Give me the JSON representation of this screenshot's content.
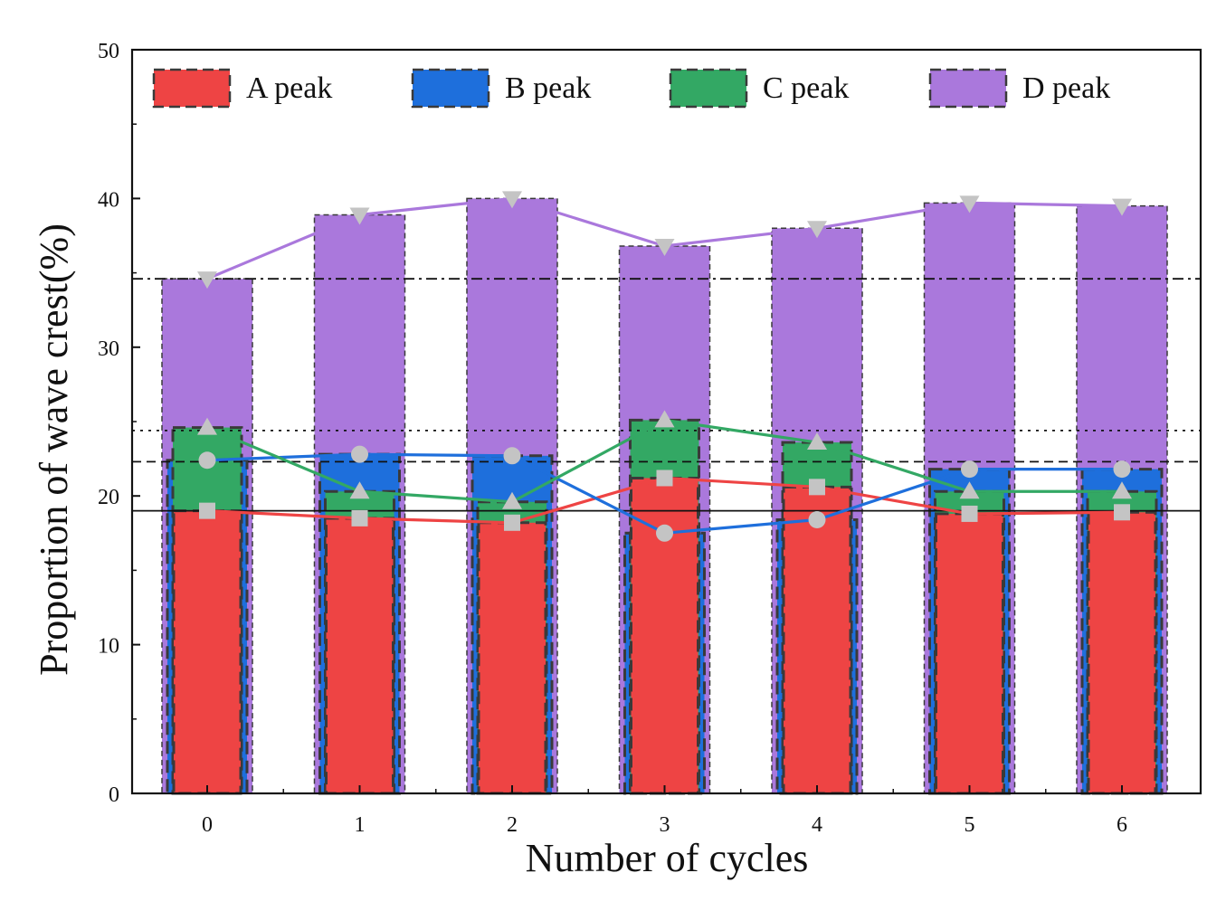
{
  "chart_data": {
    "type": "bar",
    "xlabel": "Number of cycles",
    "ylabel": "Proportion of wave crest(%)",
    "categories": [
      "0",
      "1",
      "2",
      "3",
      "4",
      "5",
      "6"
    ],
    "ylim": [
      0,
      50
    ],
    "yticks": [
      "0",
      "10",
      "20",
      "30",
      "40",
      "50"
    ],
    "grid": false,
    "legend_position": "top",
    "series": [
      {
        "name": "A peak",
        "color": "#ee4444",
        "values": [
          19.0,
          18.5,
          18.2,
          21.2,
          20.6,
          18.8,
          18.9
        ]
      },
      {
        "name": "B peak",
        "color": "#1e6fdc",
        "values": [
          22.4,
          22.8,
          22.7,
          17.5,
          18.4,
          21.8,
          21.8
        ]
      },
      {
        "name": "C peak",
        "color": "#33a864",
        "values": [
          24.6,
          20.3,
          19.6,
          25.1,
          23.6,
          20.3,
          20.3
        ]
      },
      {
        "name": "D peak",
        "color": "#aa78dc",
        "values": [
          34.6,
          38.9,
          40.0,
          36.8,
          38.0,
          39.7,
          39.5
        ]
      }
    ],
    "reference_lines": [
      {
        "series": "A peak",
        "value": 19.0,
        "style": "solid"
      },
      {
        "series": "B peak",
        "value": 22.3,
        "style": "dashed"
      },
      {
        "series": "C peak",
        "value": 24.4,
        "style": "dotted"
      },
      {
        "series": "D peak",
        "value": 34.6,
        "style": "dash-dot"
      }
    ],
    "marker_color": "#c4c4c4",
    "markers": {
      "A peak": "square",
      "B peak": "circle",
      "C peak": "triangle-up",
      "D peak": "triangle-down"
    }
  }
}
